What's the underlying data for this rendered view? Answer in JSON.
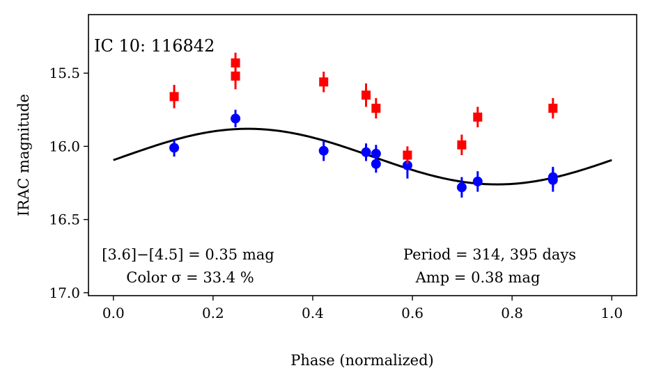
{
  "chart_data": {
    "type": "scatter",
    "title": "IC 10:  116842",
    "xlabel": "Phase (normalized)",
    "ylabel": "IRAC magnitude",
    "xlim": [
      -0.05,
      1.05
    ],
    "ylim": [
      17.02,
      15.1
    ],
    "y_inverted": true,
    "grid": false,
    "x_ticks": [
      0.0,
      0.2,
      0.4,
      0.6,
      0.8,
      1.0
    ],
    "x_tick_labels": [
      "0.0",
      "0.2",
      "0.4",
      "0.6",
      "0.8",
      "1.0"
    ],
    "y_ticks": [
      15.5,
      16.0,
      16.5,
      17.0
    ],
    "y_tick_labels": [
      "15.5",
      "16.0",
      "16.5",
      "17.0"
    ],
    "series": [
      {
        "name": "[3.6]",
        "color": "#0000ff",
        "marker": "circle",
        "points": [
          {
            "x": 0.122,
            "y": 16.01,
            "err": 0.06
          },
          {
            "x": 0.245,
            "y": 15.81,
            "err": 0.06
          },
          {
            "x": 0.422,
            "y": 16.03,
            "err": 0.07
          },
          {
            "x": 0.507,
            "y": 16.04,
            "err": 0.06
          },
          {
            "x": 0.527,
            "y": 16.05,
            "err": 0.06
          },
          {
            "x": 0.527,
            "y": 16.12,
            "err": 0.06
          },
          {
            "x": 0.59,
            "y": 16.13,
            "err": 0.09
          },
          {
            "x": 0.699,
            "y": 16.28,
            "err": 0.07
          },
          {
            "x": 0.731,
            "y": 16.24,
            "err": 0.07
          },
          {
            "x": 0.882,
            "y": 16.21,
            "err": 0.07
          },
          {
            "x": 0.882,
            "y": 16.23,
            "err": 0.08
          }
        ]
      },
      {
        "name": "[4.5]",
        "color": "#ff0000",
        "marker": "square",
        "points": [
          {
            "x": 0.122,
            "y": 15.66,
            "err": 0.08
          },
          {
            "x": 0.245,
            "y": 15.43,
            "err": 0.07
          },
          {
            "x": 0.245,
            "y": 15.52,
            "err": 0.09
          },
          {
            "x": 0.422,
            "y": 15.56,
            "err": 0.07
          },
          {
            "x": 0.507,
            "y": 15.65,
            "err": 0.08
          },
          {
            "x": 0.527,
            "y": 15.74,
            "err": 0.07
          },
          {
            "x": 0.59,
            "y": 16.06,
            "err": 0.06
          },
          {
            "x": 0.699,
            "y": 15.99,
            "err": 0.07
          },
          {
            "x": 0.731,
            "y": 15.8,
            "err": 0.07
          },
          {
            "x": 0.882,
            "y": 15.74,
            "err": 0.07
          }
        ]
      },
      {
        "name": "sine fit",
        "color": "#000000",
        "type": "line",
        "model": {
          "mean": 16.07,
          "amplitude": 0.19,
          "period": 1.0,
          "phase_of_max_brightness": 0.27
        },
        "x_range": [
          0.0,
          1.0
        ]
      }
    ],
    "annotations": {
      "color_line1": "[3.6]−[4.5] = 0.35 mag",
      "color_line2": "Color σ = 33.4 %",
      "period_line": "Period = 314, 395 days",
      "amp_line": "Amp = 0.38 mag"
    }
  }
}
